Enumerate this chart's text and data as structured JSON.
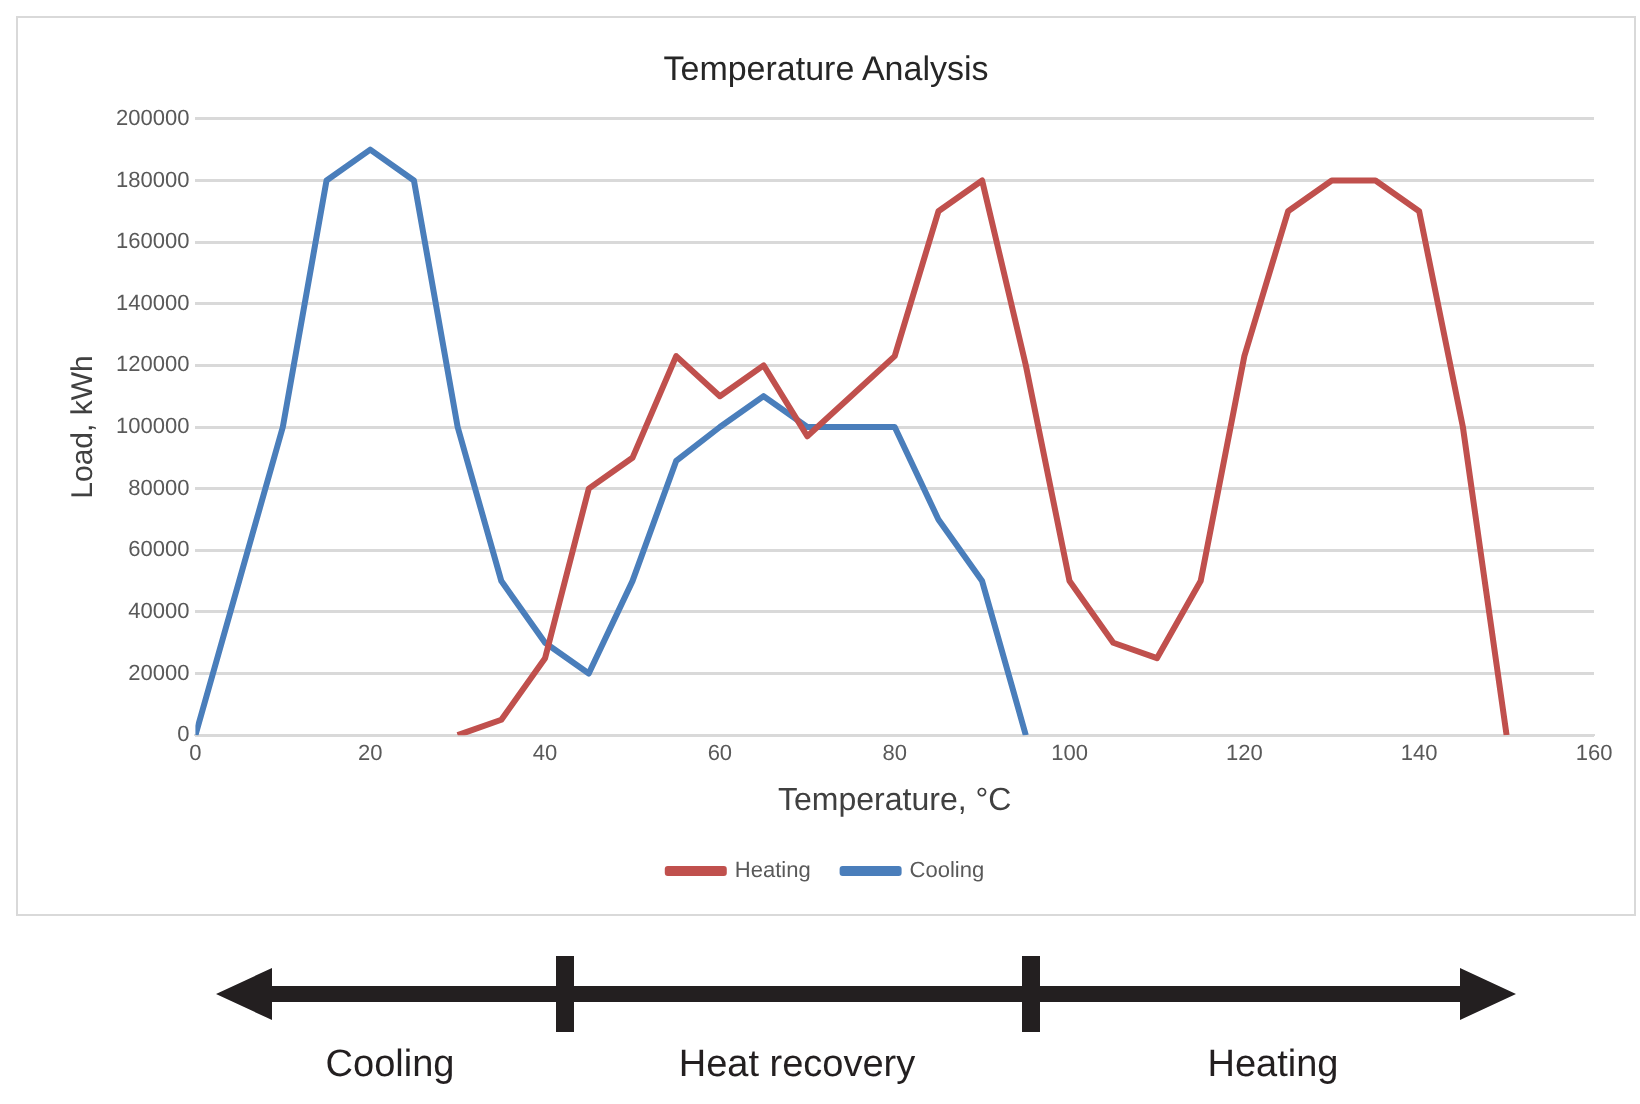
{
  "chart_data": {
    "type": "line",
    "title": "Temperature Analysis",
    "xlabel": "Temperature, °C",
    "ylabel": "Load, kWh",
    "xlim": [
      0,
      160
    ],
    "xticks": [
      0,
      20,
      40,
      60,
      80,
      100,
      120,
      140,
      160
    ],
    "ylim": [
      0,
      200000
    ],
    "yticks": [
      0,
      20000,
      40000,
      60000,
      80000,
      100000,
      120000,
      140000,
      160000,
      180000,
      200000
    ],
    "grid": "y",
    "legend": "bottom",
    "marker": "none",
    "line_style": "solid",
    "series": [
      {
        "name": "Heating",
        "color": "#c0504d",
        "x": [
          30,
          35,
          40,
          45,
          50,
          55,
          60,
          65,
          70,
          75,
          80,
          85,
          90,
          95,
          100,
          105,
          110,
          115,
          120,
          125,
          130,
          135,
          140,
          145,
          150
        ],
        "values": [
          0,
          5000,
          25000,
          80000,
          90000,
          123000,
          110000,
          120000,
          97000,
          110000,
          123000,
          170000,
          180000,
          120000,
          50000,
          30000,
          25000,
          50000,
          123000,
          170000,
          180000,
          180000,
          170000,
          100000,
          0
        ]
      },
      {
        "name": "Cooling",
        "color": "#4a7ebb",
        "x": [
          0,
          5,
          10,
          15,
          20,
          25,
          30,
          35,
          40,
          45,
          50,
          55,
          60,
          65,
          70,
          75,
          80,
          85,
          90,
          95
        ],
        "values": [
          0,
          50000,
          100000,
          180000,
          190000,
          180000,
          100000,
          50000,
          30000,
          20000,
          50000,
          89000,
          100000,
          110000,
          100000,
          100000,
          100000,
          70000,
          50000,
          0
        ]
      }
    ],
    "annotations": [
      "Cooling",
      "Heat recovery",
      "Heating"
    ]
  }
}
